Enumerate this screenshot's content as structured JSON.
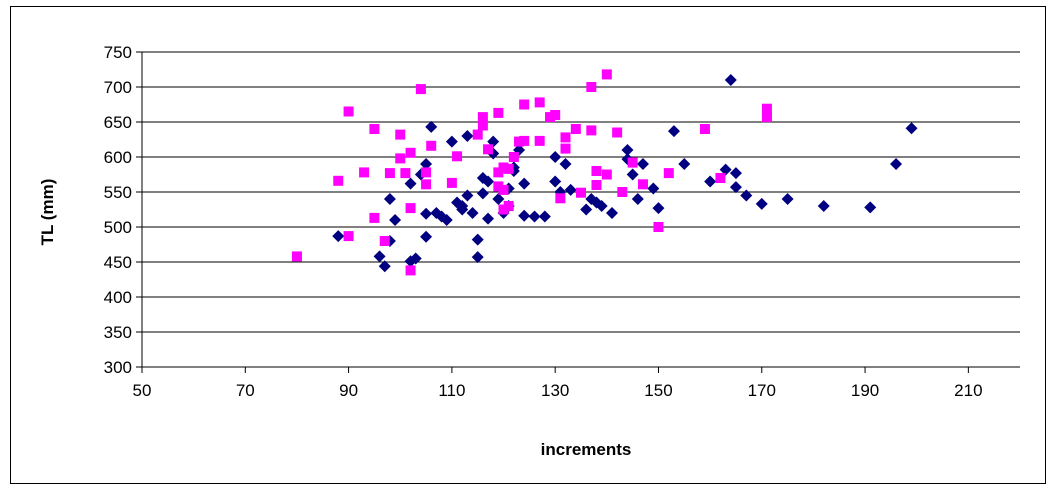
{
  "chart_data": {
    "type": "scatter",
    "xlabel": "increments",
    "ylabel": "TL (mm)",
    "xlim": [
      50,
      220
    ],
    "ylim": [
      300,
      750
    ],
    "x_ticks": [
      50,
      70,
      90,
      110,
      130,
      150,
      170,
      190,
      210
    ],
    "y_ticks": [
      300,
      350,
      400,
      450,
      500,
      550,
      600,
      650,
      700,
      750
    ],
    "grid": "horizontal",
    "legend": "none",
    "series": [
      {
        "marker": "diamond",
        "color": "#000080",
        "points": [
          [
            88,
            487
          ],
          [
            96,
            458
          ],
          [
            97,
            444
          ],
          [
            98,
            540
          ],
          [
            98,
            480
          ],
          [
            99,
            510
          ],
          [
            102,
            562
          ],
          [
            102,
            451
          ],
          [
            103,
            455
          ],
          [
            104,
            575
          ],
          [
            105,
            590
          ],
          [
            105,
            486
          ],
          [
            105,
            519
          ],
          [
            106,
            643
          ],
          [
            107,
            520
          ],
          [
            108,
            515
          ],
          [
            109,
            510
          ],
          [
            110,
            622
          ],
          [
            111,
            535
          ],
          [
            112,
            525
          ],
          [
            112,
            530
          ],
          [
            113,
            630
          ],
          [
            113,
            545
          ],
          [
            114,
            520
          ],
          [
            115,
            482
          ],
          [
            115,
            457
          ],
          [
            116,
            548
          ],
          [
            116,
            570
          ],
          [
            117,
            512
          ],
          [
            117,
            565
          ],
          [
            118,
            622
          ],
          [
            118,
            605
          ],
          [
            119,
            540
          ],
          [
            120,
            520
          ],
          [
            121,
            530
          ],
          [
            121,
            555
          ],
          [
            122,
            585
          ],
          [
            122,
            580
          ],
          [
            123,
            610
          ],
          [
            124,
            562
          ],
          [
            124,
            516
          ],
          [
            126,
            515
          ],
          [
            128,
            515
          ],
          [
            130,
            600
          ],
          [
            130,
            565
          ],
          [
            131,
            550
          ],
          [
            132,
            590
          ],
          [
            133,
            553
          ],
          [
            136,
            525
          ],
          [
            137,
            540
          ],
          [
            138,
            535
          ],
          [
            139,
            530
          ],
          [
            141,
            520
          ],
          [
            144,
            597
          ],
          [
            144,
            610
          ],
          [
            145,
            575
          ],
          [
            146,
            540
          ],
          [
            147,
            590
          ],
          [
            149,
            555
          ],
          [
            150,
            527
          ],
          [
            153,
            637
          ],
          [
            155,
            590
          ],
          [
            160,
            565
          ],
          [
            163,
            582
          ],
          [
            164,
            710
          ],
          [
            165,
            577
          ],
          [
            165,
            557
          ],
          [
            167,
            545
          ],
          [
            170,
            533
          ],
          [
            175,
            540
          ],
          [
            182,
            530
          ],
          [
            191,
            528
          ],
          [
            196,
            590
          ],
          [
            199,
            641
          ]
        ]
      },
      {
        "marker": "square",
        "color": "#FF00FF",
        "points": [
          [
            80,
            458
          ],
          [
            88,
            566
          ],
          [
            90,
            487
          ],
          [
            90,
            665
          ],
          [
            93,
            578
          ],
          [
            95,
            640
          ],
          [
            95,
            513
          ],
          [
            97,
            480
          ],
          [
            98,
            577
          ],
          [
            100,
            632
          ],
          [
            100,
            598
          ],
          [
            101,
            577
          ],
          [
            102,
            527
          ],
          [
            102,
            438
          ],
          [
            102,
            606
          ],
          [
            104,
            697
          ],
          [
            105,
            578
          ],
          [
            105,
            561
          ],
          [
            106,
            616
          ],
          [
            110,
            563
          ],
          [
            111,
            601
          ],
          [
            115,
            632
          ],
          [
            116,
            657
          ],
          [
            116,
            645
          ],
          [
            117,
            611
          ],
          [
            119,
            663
          ],
          [
            119,
            578
          ],
          [
            119,
            558
          ],
          [
            120,
            585
          ],
          [
            120,
            525
          ],
          [
            120,
            553
          ],
          [
            121,
            583
          ],
          [
            121,
            530
          ],
          [
            122,
            600
          ],
          [
            123,
            622
          ],
          [
            124,
            675
          ],
          [
            124,
            623
          ],
          [
            127,
            678
          ],
          [
            127,
            623
          ],
          [
            129,
            657
          ],
          [
            130,
            660
          ],
          [
            131,
            541
          ],
          [
            132,
            628
          ],
          [
            132,
            612
          ],
          [
            134,
            640
          ],
          [
            135,
            549
          ],
          [
            137,
            700
          ],
          [
            137,
            638
          ],
          [
            138,
            580
          ],
          [
            138,
            560
          ],
          [
            140,
            718
          ],
          [
            140,
            575
          ],
          [
            142,
            635
          ],
          [
            143,
            550
          ],
          [
            145,
            592
          ],
          [
            147,
            561
          ],
          [
            150,
            500
          ],
          [
            152,
            577
          ],
          [
            159,
            640
          ],
          [
            162,
            570
          ],
          [
            171,
            669
          ],
          [
            171,
            657
          ]
        ]
      }
    ]
  }
}
